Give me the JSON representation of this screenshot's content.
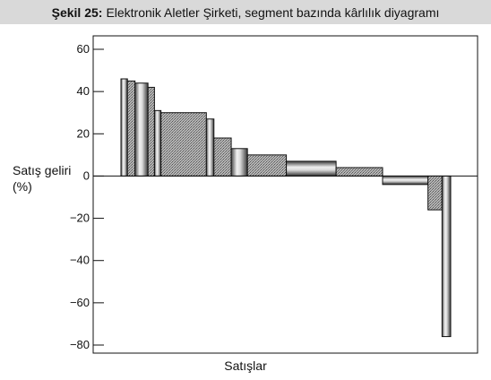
{
  "title": {
    "bold": "Şekil 25:",
    "text": "Elektronik Aletler Şirketi, segment bazında kârlılık diyagramı"
  },
  "chart_data": {
    "type": "bar",
    "subtype": "variable-width profitability chart (segments sorted by return on sales)",
    "title": "Şekil 25: Elektronik Aletler Şirketi, segment bazında kârlılık diyagramı",
    "ylabel_lines": [
      "Satış geliri",
      "(%)"
    ],
    "xlabel": "Satışlar",
    "ylim": [
      -80,
      60
    ],
    "yticks": [
      60,
      40,
      20,
      0,
      -20,
      -40,
      -60,
      -80
    ],
    "ytick_labels": [
      "60",
      "40",
      "20",
      "0",
      "−20",
      "−40",
      "−60",
      "−80"
    ],
    "grid": false,
    "segments": [
      {
        "value": 46,
        "share": 0.6,
        "fill": "cylinder"
      },
      {
        "value": 45,
        "share": 0.7,
        "fill": "hatch"
      },
      {
        "value": 44,
        "share": 1.2,
        "fill": "cylinder"
      },
      {
        "value": 42,
        "share": 0.6,
        "fill": "hatch"
      },
      {
        "value": 31,
        "share": 0.6,
        "fill": "cylinder"
      },
      {
        "value": 30,
        "share": 4.2,
        "fill": "hatch"
      },
      {
        "value": 27,
        "share": 0.7,
        "fill": "cylinder"
      },
      {
        "value": 18,
        "share": 1.6,
        "fill": "hatch"
      },
      {
        "value": 13,
        "share": 1.5,
        "fill": "cylinder"
      },
      {
        "value": 10,
        "share": 3.6,
        "fill": "hatch"
      },
      {
        "value": 7,
        "share": 4.6,
        "fill": "cylinder"
      },
      {
        "value": 4,
        "share": 4.3,
        "fill": "hatch"
      },
      {
        "value": -4,
        "share": 4.2,
        "fill": "cylinder"
      },
      {
        "value": -16,
        "share": 1.3,
        "fill": "hatch"
      },
      {
        "value": -76,
        "share": 0.8,
        "fill": "cylinder"
      }
    ]
  }
}
